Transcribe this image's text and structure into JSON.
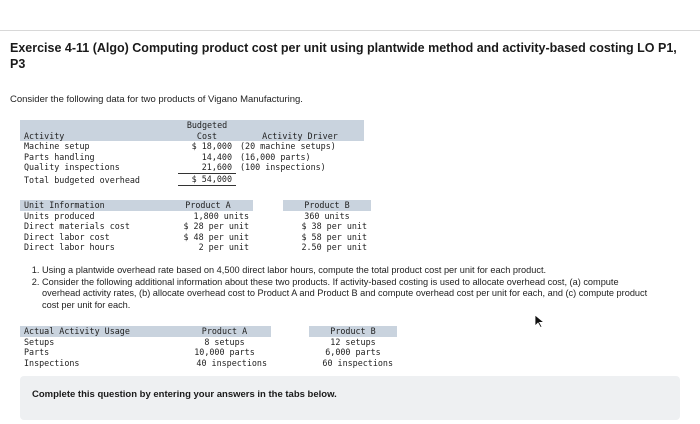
{
  "exercise": {
    "title": "Exercise 4-11 (Algo) Computing product cost per unit using plantwide method and activity-based costing LO P1, P3",
    "intro": "Consider the following data for two products of Vigano Manufacturing."
  },
  "overhead_table": {
    "headers": {
      "activity": "Activity",
      "budgeted_cost": "Budgeted\nCost",
      "driver": "Activity Driver"
    },
    "rows": [
      {
        "activity": "Machine setup",
        "cost": "$ 18,000",
        "driver": "(20 machine setups)"
      },
      {
        "activity": "Parts handling",
        "cost": "14,400",
        "driver": "(16,000 parts)"
      },
      {
        "activity": "Quality inspections",
        "cost": "21,600",
        "driver": "(100 inspections)"
      }
    ],
    "total": {
      "label": "Total budgeted overhead",
      "cost": "$ 54,000"
    }
  },
  "unit_table": {
    "headers": {
      "label": "Unit Information",
      "a": "Product A",
      "b": "Product B"
    },
    "rows": [
      {
        "label": "Units produced",
        "a": "1,800 units",
        "b": "360 units"
      },
      {
        "label": "Direct materials cost",
        "a": "$ 28 per unit",
        "b": "$ 38 per unit"
      },
      {
        "label": "Direct labor cost",
        "a": "$ 48 per unit",
        "b": "$ 58 per unit"
      },
      {
        "label": "Direct labor hours",
        "a": "2 per unit",
        "b": "2.50 per unit"
      }
    ]
  },
  "questions": [
    "Using a plantwide overhead rate based on 4,500 direct labor hours, compute the total product cost per unit for each product.",
    "Consider the following additional information about these two products. If activity-based costing is used to allocate overhead cost, (a) compute overhead activity rates, (b) allocate overhead cost to Product A and Product B and compute overhead cost per unit for each, and (c) compute product cost per unit for each."
  ],
  "usage_table": {
    "headers": {
      "label": "Actual Activity Usage",
      "a": "Product A",
      "b": "Product B"
    },
    "rows": [
      {
        "label": "Setups",
        "a": "8 setups",
        "b": "12 setups"
      },
      {
        "label": "Parts",
        "a": "10,000 parts",
        "b": "6,000 parts"
      },
      {
        "label": "Inspections",
        "a": "40 inspections",
        "b": "60 inspections"
      }
    ]
  },
  "footer": {
    "complete_text": "Complete this question by entering your answers in the tabs below."
  }
}
